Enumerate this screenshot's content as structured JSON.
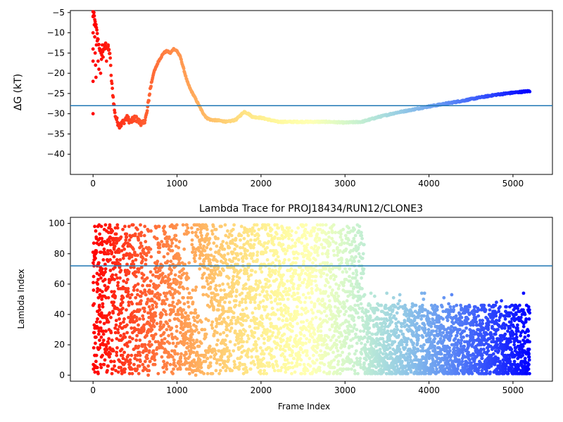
{
  "chart_data": [
    {
      "type": "scatter",
      "title": "",
      "xlabel": "",
      "ylabel": "ΔG (kT)",
      "xlim": [
        -270,
        5470
      ],
      "ylim": [
        -45,
        -4.5
      ],
      "xticks": [
        0,
        1000,
        2000,
        3000,
        4000,
        5000
      ],
      "yticks": [
        -40,
        -35,
        -30,
        -25,
        -20,
        -15,
        -10,
        -5
      ],
      "hline": -28,
      "hline_color": "#1f77b4",
      "colormap": "rainbow (reversed with frame index: early frames red, late frames violet)",
      "series_curve": [
        [
          0,
          -5
        ],
        [
          20,
          -7
        ],
        [
          40,
          -9
        ],
        [
          60,
          -12
        ],
        [
          80,
          -14
        ],
        [
          100,
          -16
        ],
        [
          120,
          -14
        ],
        [
          150,
          -13
        ],
        [
          180,
          -14
        ],
        [
          200,
          -15
        ],
        [
          220,
          -22
        ],
        [
          240,
          -26
        ],
        [
          260,
          -30
        ],
        [
          290,
          -32
        ],
        [
          320,
          -33
        ],
        [
          360,
          -32
        ],
        [
          400,
          -31
        ],
        [
          450,
          -32
        ],
        [
          500,
          -31
        ],
        [
          550,
          -32
        ],
        [
          600,
          -32.5
        ],
        [
          640,
          -30
        ],
        [
          680,
          -24
        ],
        [
          720,
          -20
        ],
        [
          780,
          -17
        ],
        [
          840,
          -15
        ],
        [
          880,
          -14.5
        ],
        [
          920,
          -15
        ],
        [
          960,
          -14
        ],
        [
          1000,
          -14.5
        ],
        [
          1040,
          -16
        ],
        [
          1080,
          -19
        ],
        [
          1120,
          -22
        ],
        [
          1160,
          -24
        ],
        [
          1200,
          -25.5
        ],
        [
          1250,
          -27.5
        ],
        [
          1300,
          -29.5
        ],
        [
          1350,
          -31
        ],
        [
          1400,
          -31.5
        ],
        [
          1500,
          -31.7
        ],
        [
          1600,
          -32
        ],
        [
          1700,
          -31.5
        ],
        [
          1750,
          -30.5
        ],
        [
          1800,
          -29.5
        ],
        [
          1850,
          -30
        ],
        [
          1900,
          -30.8
        ],
        [
          2000,
          -31
        ],
        [
          2100,
          -31.5
        ],
        [
          2200,
          -32
        ],
        [
          2400,
          -32
        ],
        [
          2600,
          -32
        ],
        [
          2800,
          -32
        ],
        [
          3000,
          -32.2
        ],
        [
          3200,
          -32
        ],
        [
          3400,
          -30.8
        ],
        [
          3600,
          -29.8
        ],
        [
          3800,
          -29
        ],
        [
          4000,
          -28.2
        ],
        [
          4200,
          -27.5
        ],
        [
          4400,
          -26.8
        ],
        [
          4600,
          -26
        ],
        [
          4800,
          -25.3
        ],
        [
          5000,
          -24.8
        ],
        [
          5200,
          -24.4
        ]
      ],
      "early_scatter": [
        [
          0,
          -6
        ],
        [
          0,
          -10
        ],
        [
          0,
          -14
        ],
        [
          0,
          -17
        ],
        [
          0,
          -22
        ],
        [
          0,
          -30
        ],
        [
          10,
          -5
        ],
        [
          15,
          -8
        ],
        [
          20,
          -11
        ],
        [
          25,
          -15
        ],
        [
          30,
          -18
        ],
        [
          35,
          -21
        ],
        [
          40,
          -13
        ],
        [
          50,
          -12
        ],
        [
          60,
          -17
        ],
        [
          70,
          -19
        ],
        [
          80,
          -14
        ],
        [
          90,
          -20
        ],
        [
          100,
          -15
        ],
        [
          110,
          -13
        ],
        [
          120,
          -16
        ],
        [
          140,
          -14
        ],
        [
          160,
          -17
        ],
        [
          180,
          -13
        ]
      ]
    },
    {
      "type": "scatter",
      "title": "Lambda Trace for PROJ18434/RUN12/CLONE3",
      "xlabel": "Frame Index",
      "ylabel": "Lambda Index",
      "xlim": [
        -270,
        5470
      ],
      "ylim": [
        -4,
        104
      ],
      "xticks": [
        0,
        1000,
        2000,
        3000,
        4000,
        5000
      ],
      "yticks": [
        0,
        20,
        40,
        60,
        80,
        100
      ],
      "hline": 72,
      "hline_color": "#1f77b4",
      "colormap": "rainbow (reversed with frame index)",
      "point_count": 5200,
      "regions": [
        {
          "x": [
            0,
            1000
          ],
          "y": [
            0,
            100
          ],
          "note": "points spread over the full lambda range"
        },
        {
          "x": [
            1000,
            3230
          ],
          "y": [
            0,
            100
          ],
          "note": "full range; diagonal band emptier near x 1000–1400"
        },
        {
          "x": [
            3230,
            5200
          ],
          "y": [
            0,
            55
          ],
          "note": "mostly between 0 and 45, occasional up to 55"
        }
      ]
    }
  ]
}
